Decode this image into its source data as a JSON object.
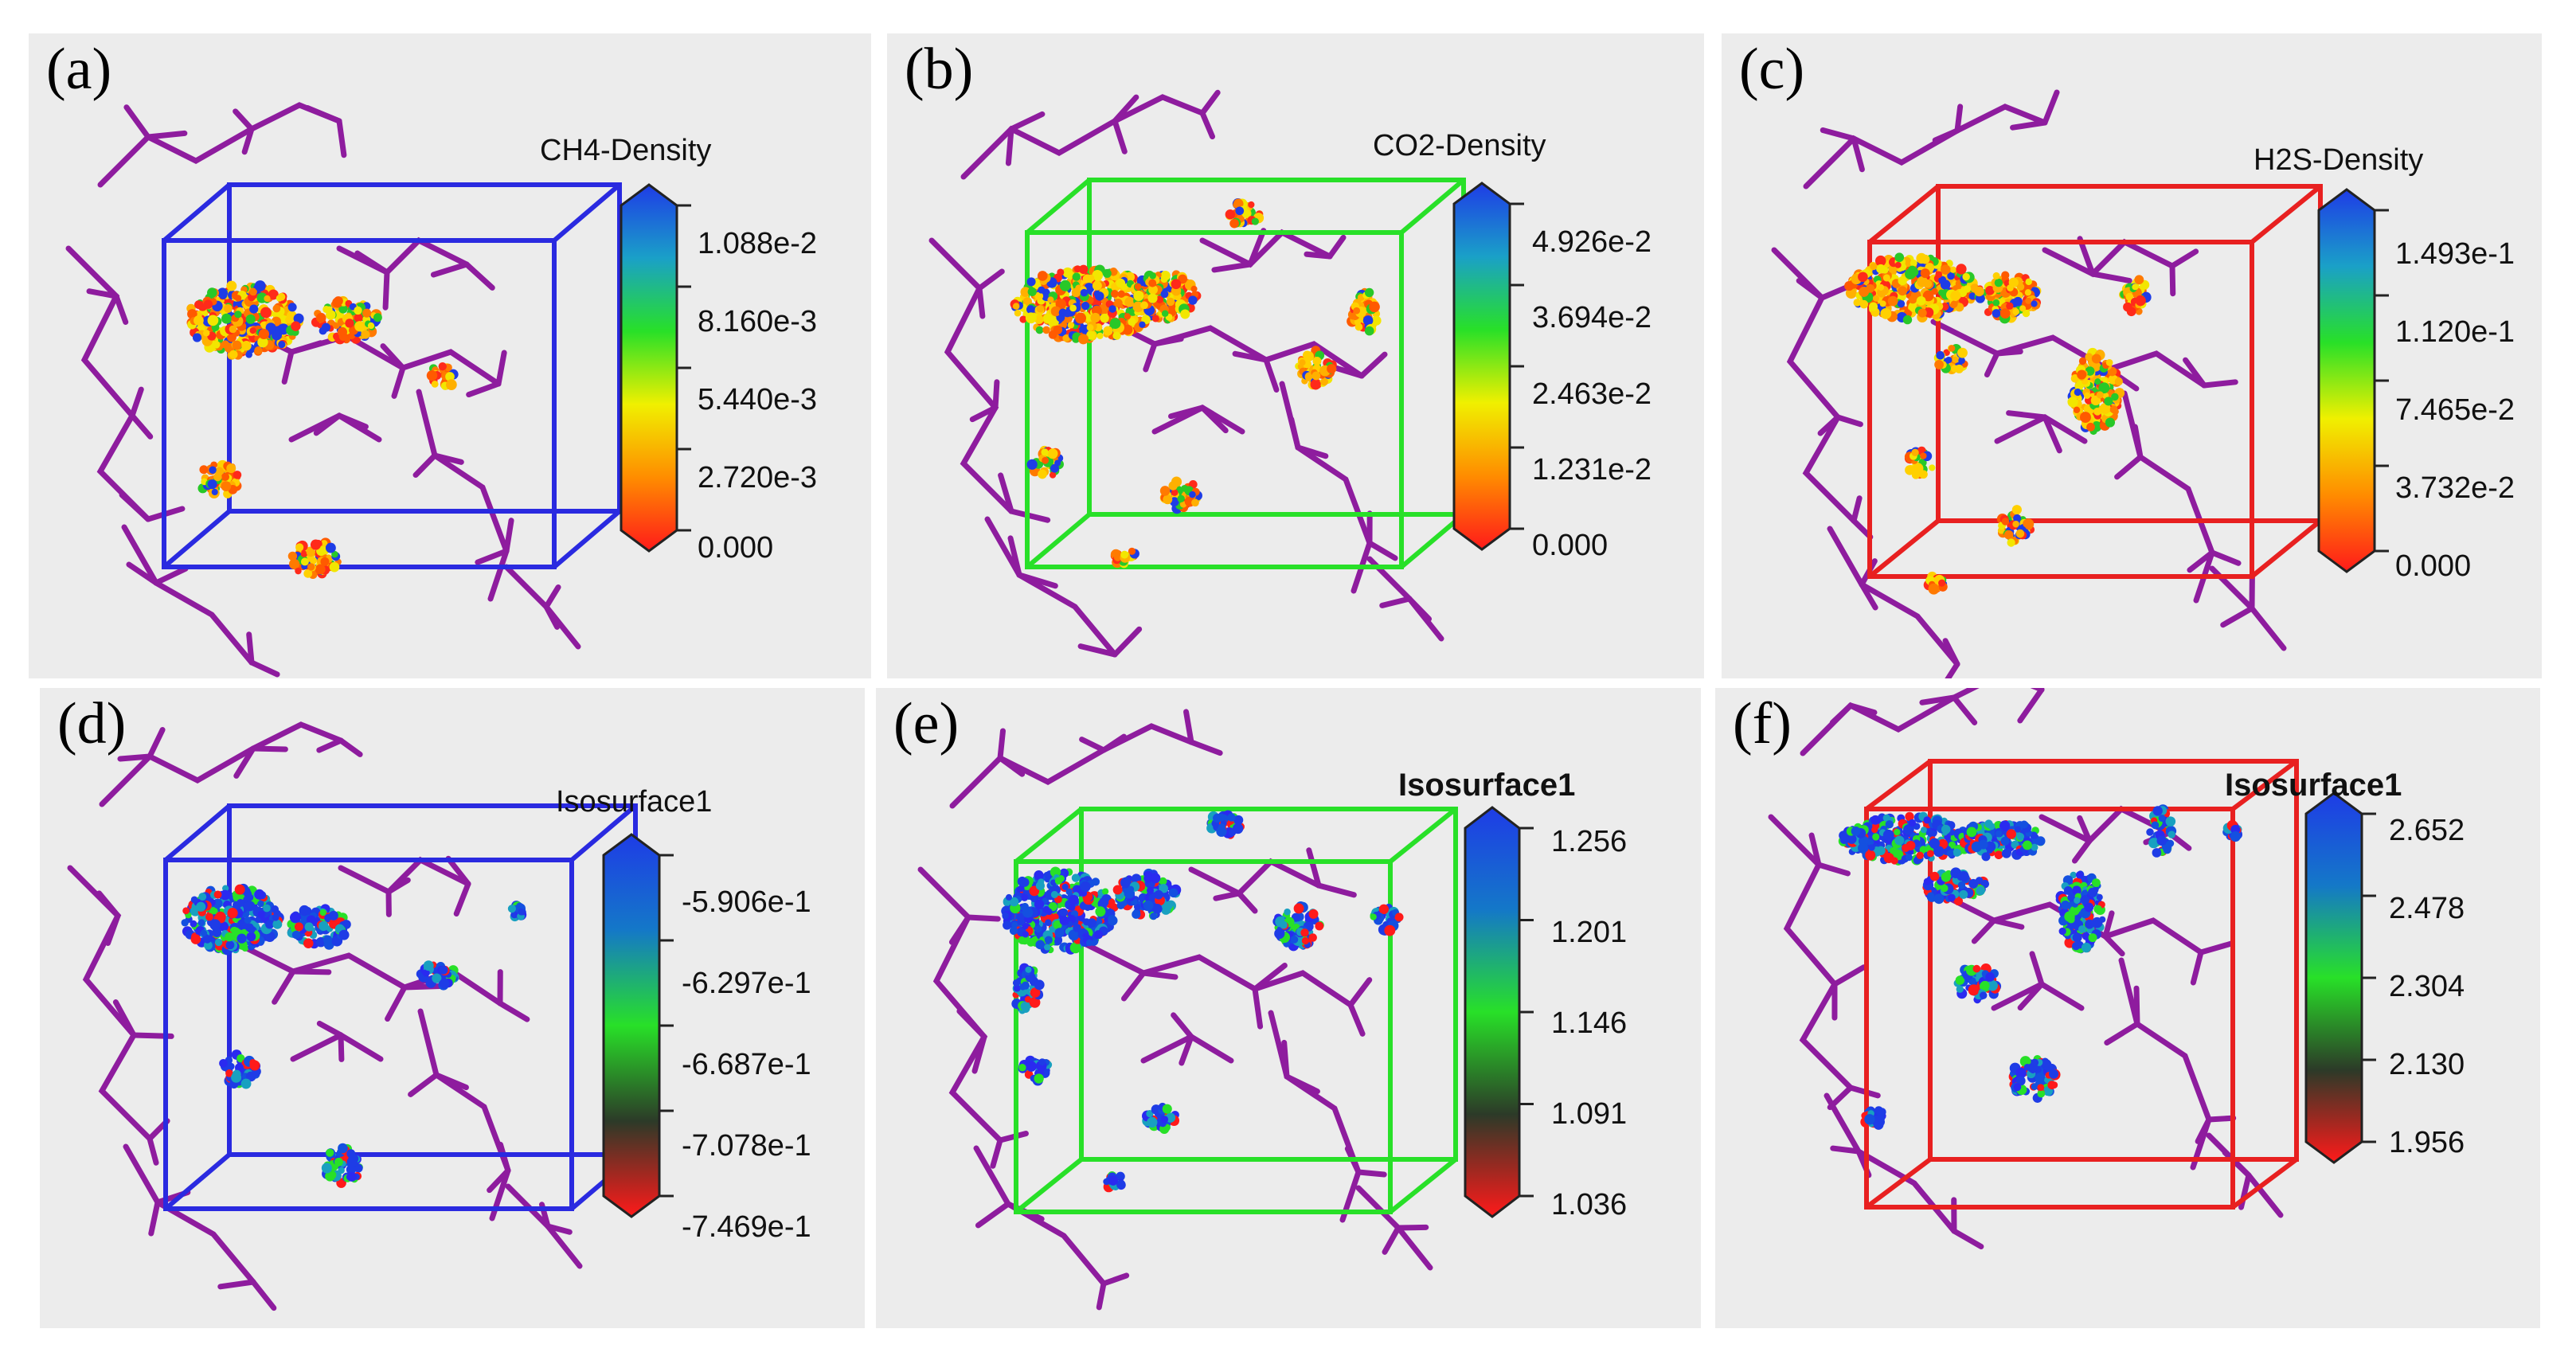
{
  "panels": [
    {
      "letter": "(a)",
      "title": "CH4-Density",
      "ticks": [
        "1.088e-2",
        "8.160e-3",
        "5.440e-3",
        "2.720e-3",
        "0.000"
      ],
      "box_color": "#2a2ae0"
    },
    {
      "letter": "(b)",
      "title": "CO2-Density",
      "ticks": [
        "4.926e-2",
        "3.694e-2",
        "2.463e-2",
        "1.231e-2",
        "0.000"
      ],
      "box_color": "#28e028"
    },
    {
      "letter": "(c)",
      "title": "H2S-Density",
      "ticks": [
        "1.493e-1",
        "1.120e-1",
        "7.465e-2",
        "3.732e-2",
        "0.000"
      ],
      "box_color": "#e82020"
    },
    {
      "letter": "(d)",
      "title": "Isosurface1",
      "ticks": [
        "-5.906e-1",
        "-6.297e-1",
        "-6.687e-1",
        "-7.078e-1",
        "-7.469e-1"
      ],
      "box_color": "#2a2ae0"
    },
    {
      "letter": "(e)",
      "title": "Isosurface1",
      "ticks": [
        "1.256",
        "1.201",
        "1.146",
        "1.091",
        "1.036"
      ],
      "box_color": "#28e028"
    },
    {
      "letter": "(f)",
      "title": "Isosurface1",
      "ticks": [
        "2.652",
        "2.478",
        "2.304",
        "2.130",
        "1.956"
      ],
      "box_color": "#e82020"
    }
  ],
  "colors": {
    "molecule": "#8e1c9e",
    "background": "#ececec",
    "density_scale": [
      "#1e3ce6",
      "#1aa0c8",
      "#28e028",
      "#f0f000",
      "#ff8c00",
      "#ff1a1a"
    ],
    "iso_scale": [
      "#1e3ce6",
      "#1478c8",
      "#28e028",
      "#2c3a28",
      "#ff1a1a"
    ]
  }
}
